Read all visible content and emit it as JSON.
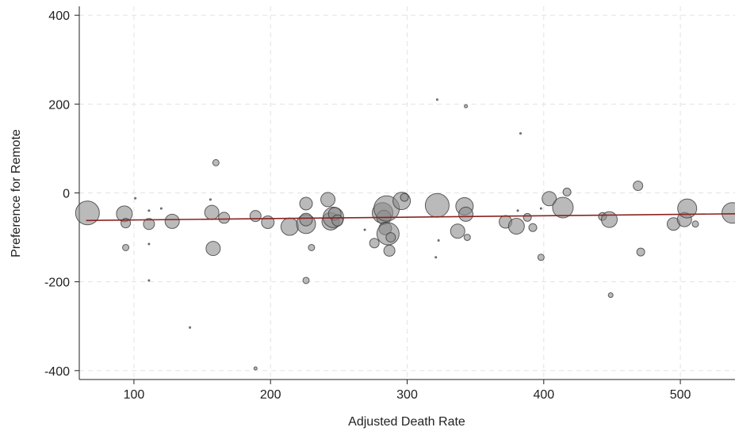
{
  "chart_data": {
    "type": "scatter",
    "title": "",
    "xlabel": "Adjusted Death Rate",
    "ylabel": "Preference for Remote",
    "xlim": [
      60,
      540
    ],
    "ylim": [
      -420,
      420
    ],
    "x_ticks": [
      100,
      200,
      300,
      400,
      500
    ],
    "y_ticks": [
      -400,
      -200,
      0,
      200,
      400
    ],
    "x_tick_labels": [
      "100",
      "200",
      "300",
      "400",
      "500"
    ],
    "y_tick_labels": [
      "-400",
      "-200",
      "0",
      "200",
      "400"
    ],
    "grid": true,
    "legend": "none",
    "marker_color": "#8c8c8c",
    "fit_line_color": "#8b2323",
    "fit_line": {
      "x": [
        65,
        540
      ],
      "y": [
        -62,
        -47
      ]
    },
    "points": [
      {
        "x": 66,
        "y": -45,
        "s": 15
      },
      {
        "x": 93,
        "y": -47,
        "s": 10
      },
      {
        "x": 94,
        "y": -68,
        "s": 6
      },
      {
        "x": 94,
        "y": -123,
        "s": 4
      },
      {
        "x": 101,
        "y": -12,
        "s": 1
      },
      {
        "x": 111,
        "y": -70,
        "s": 7
      },
      {
        "x": 111,
        "y": -40,
        "s": 1
      },
      {
        "x": 111,
        "y": -115,
        "s": 1
      },
      {
        "x": 111,
        "y": -197,
        "s": 1
      },
      {
        "x": 120,
        "y": -35,
        "s": 1
      },
      {
        "x": 128,
        "y": -64,
        "s": 9
      },
      {
        "x": 141,
        "y": -303,
        "s": 1
      },
      {
        "x": 156,
        "y": -15,
        "s": 1
      },
      {
        "x": 157,
        "y": -44,
        "s": 9
      },
      {
        "x": 158,
        "y": -125,
        "s": 9
      },
      {
        "x": 160,
        "y": 68,
        "s": 4
      },
      {
        "x": 166,
        "y": -56,
        "s": 7
      },
      {
        "x": 189,
        "y": -52,
        "s": 7
      },
      {
        "x": 189,
        "y": -395,
        "s": 2
      },
      {
        "x": 198,
        "y": -66,
        "s": 8
      },
      {
        "x": 214,
        "y": -76,
        "s": 11
      },
      {
        "x": 226,
        "y": -70,
        "s": 12
      },
      {
        "x": 226,
        "y": -24,
        "s": 8
      },
      {
        "x": 226,
        "y": -60,
        "s": 8
      },
      {
        "x": 226,
        "y": -197,
        "s": 4
      },
      {
        "x": 230,
        "y": -123,
        "s": 4
      },
      {
        "x": 242,
        "y": -15,
        "s": 9
      },
      {
        "x": 244,
        "y": -64,
        "s": 11
      },
      {
        "x": 246,
        "y": -55,
        "s": 13
      },
      {
        "x": 247,
        "y": -47,
        "s": 8
      },
      {
        "x": 249,
        "y": -62,
        "s": 7
      },
      {
        "x": 269,
        "y": -83,
        "s": 1
      },
      {
        "x": 276,
        "y": -113,
        "s": 6
      },
      {
        "x": 282,
        "y": -45,
        "s": 13
      },
      {
        "x": 283,
        "y": -55,
        "s": 9
      },
      {
        "x": 284,
        "y": -80,
        "s": 8
      },
      {
        "x": 285,
        "y": -35,
        "s": 16
      },
      {
        "x": 286,
        "y": -92,
        "s": 14
      },
      {
        "x": 287,
        "y": -130,
        "s": 7
      },
      {
        "x": 288,
        "y": -100,
        "s": 6
      },
      {
        "x": 296,
        "y": -18,
        "s": 11
      },
      {
        "x": 298,
        "y": -10,
        "s": 5
      },
      {
        "x": 321,
        "y": -145,
        "s": 1
      },
      {
        "x": 322,
        "y": 210,
        "s": 1
      },
      {
        "x": 322,
        "y": -28,
        "s": 15
      },
      {
        "x": 323,
        "y": -107,
        "s": 1
      },
      {
        "x": 337,
        "y": -86,
        "s": 9
      },
      {
        "x": 342,
        "y": -30,
        "s": 11
      },
      {
        "x": 343,
        "y": -48,
        "s": 9
      },
      {
        "x": 343,
        "y": 195,
        "s": 2
      },
      {
        "x": 344,
        "y": -100,
        "s": 4
      },
      {
        "x": 372,
        "y": -65,
        "s": 8
      },
      {
        "x": 380,
        "y": -75,
        "s": 10
      },
      {
        "x": 381,
        "y": -40,
        "s": 1
      },
      {
        "x": 383,
        "y": 134,
        "s": 1
      },
      {
        "x": 388,
        "y": -55,
        "s": 5
      },
      {
        "x": 392,
        "y": -78,
        "s": 5
      },
      {
        "x": 398,
        "y": -145,
        "s": 4
      },
      {
        "x": 398,
        "y": -35,
        "s": 1
      },
      {
        "x": 404,
        "y": -13,
        "s": 9
      },
      {
        "x": 414,
        "y": -33,
        "s": 13
      },
      {
        "x": 417,
        "y": 2,
        "s": 5
      },
      {
        "x": 443,
        "y": -53,
        "s": 5
      },
      {
        "x": 448,
        "y": -60,
        "s": 10
      },
      {
        "x": 449,
        "y": -230,
        "s": 3
      },
      {
        "x": 469,
        "y": 16,
        "s": 6
      },
      {
        "x": 471,
        "y": -133,
        "s": 5
      },
      {
        "x": 495,
        "y": -70,
        "s": 8
      },
      {
        "x": 503,
        "y": -60,
        "s": 9
      },
      {
        "x": 505,
        "y": -35,
        "s": 12
      },
      {
        "x": 511,
        "y": -70,
        "s": 4
      },
      {
        "x": 538,
        "y": -45,
        "s": 13
      }
    ]
  }
}
